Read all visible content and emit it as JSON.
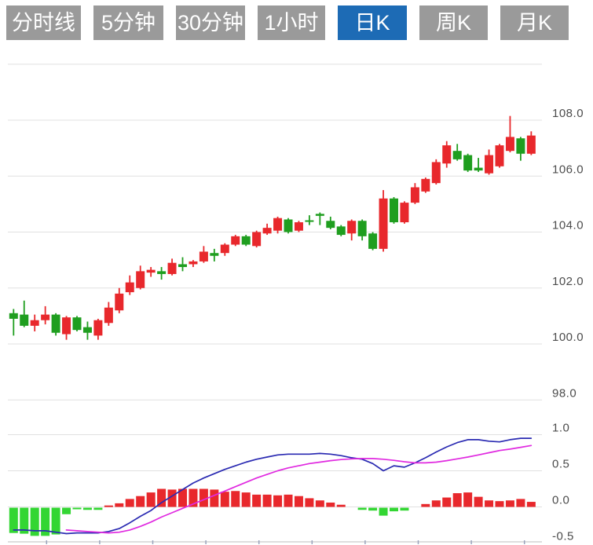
{
  "toolbar": {
    "buttons": [
      {
        "label": "分时线",
        "active": false
      },
      {
        "label": "5分钟",
        "active": false
      },
      {
        "label": "30分钟",
        "active": false
      },
      {
        "label": "1小时",
        "active": false
      },
      {
        "label": "日K",
        "active": true
      },
      {
        "label": "周K",
        "active": false
      },
      {
        "label": "月K",
        "active": false
      }
    ],
    "active_bg": "#1d6bb5",
    "inactive_bg": "#9a9a9a",
    "text_color": "#ffffff"
  },
  "axis_style": {
    "label_color": "#4c4c4c",
    "grid_color": "#e0e0e0",
    "axis_line_color": "#c9c9c9",
    "tick_color": "#9aa3bd"
  },
  "chart_data": [
    {
      "type": "candlestick",
      "panel": "price",
      "title": "",
      "ylim": [
        97.0,
        110.5
      ],
      "yticks": [
        {
          "value": 110.0,
          "label": ""
        },
        {
          "value": 108.0,
          "label": "108.0"
        },
        {
          "value": 106.0,
          "label": "106.0"
        },
        {
          "value": 104.0,
          "label": "104.0"
        },
        {
          "value": 102.0,
          "label": "102.0"
        },
        {
          "value": 100.0,
          "label": "100.0"
        },
        {
          "value": 98.0,
          "label": "98.0"
        }
      ],
      "up_color": "#e8282c",
      "down_color": "#1f9e1f",
      "ohlc_order": [
        "open",
        "high",
        "low",
        "close"
      ],
      "candles": [
        [
          101.1,
          101.25,
          100.3,
          100.9
        ],
        [
          101.05,
          101.55,
          100.6,
          100.65
        ],
        [
          100.65,
          101.05,
          100.45,
          100.85
        ],
        [
          100.85,
          101.35,
          100.7,
          101.05
        ],
        [
          101.05,
          101.1,
          100.3,
          100.4
        ],
        [
          100.35,
          101.0,
          100.15,
          100.95
        ],
        [
          100.95,
          101.0,
          100.45,
          100.5
        ],
        [
          100.6,
          100.8,
          100.15,
          100.4
        ],
        [
          100.3,
          100.9,
          100.15,
          100.85
        ],
        [
          100.75,
          101.5,
          100.65,
          101.3
        ],
        [
          101.2,
          102.0,
          101.1,
          101.8
        ],
        [
          101.85,
          102.45,
          101.75,
          102.2
        ],
        [
          102.0,
          102.8,
          101.95,
          102.6
        ],
        [
          102.55,
          102.75,
          102.4,
          102.65
        ],
        [
          102.6,
          102.75,
          102.3,
          102.5
        ],
        [
          102.5,
          103.05,
          102.45,
          102.9
        ],
        [
          102.85,
          103.1,
          102.6,
          102.75
        ],
        [
          102.85,
          103.0,
          102.75,
          102.95
        ],
        [
          102.95,
          103.5,
          102.9,
          103.3
        ],
        [
          103.25,
          103.4,
          102.95,
          103.15
        ],
        [
          103.25,
          103.6,
          103.15,
          103.55
        ],
        [
          103.55,
          103.9,
          103.5,
          103.85
        ],
        [
          103.85,
          103.9,
          103.5,
          103.55
        ],
        [
          103.5,
          104.05,
          103.45,
          104.0
        ],
        [
          103.95,
          104.3,
          103.9,
          104.15
        ],
        [
          104.05,
          104.55,
          103.95,
          104.5
        ],
        [
          104.45,
          104.5,
          103.95,
          104.0
        ],
        [
          104.05,
          104.4,
          104.0,
          104.35
        ],
        [
          104.42,
          104.6,
          104.25,
          104.38
        ],
        [
          104.65,
          104.7,
          104.25,
          104.58
        ],
        [
          104.4,
          104.55,
          104.1,
          104.15
        ],
        [
          104.2,
          104.25,
          103.85,
          103.9
        ],
        [
          103.95,
          104.45,
          103.7,
          104.4
        ],
        [
          104.4,
          104.45,
          103.7,
          103.85
        ],
        [
          103.95,
          104.0,
          103.35,
          103.4
        ],
        [
          103.4,
          105.5,
          103.3,
          105.2
        ],
        [
          105.2,
          105.25,
          104.3,
          104.35
        ],
        [
          104.35,
          105.1,
          104.3,
          105.05
        ],
        [
          105.05,
          105.75,
          105.0,
          105.6
        ],
        [
          105.45,
          105.95,
          105.4,
          105.9
        ],
        [
          105.75,
          106.6,
          105.7,
          106.5
        ],
        [
          106.45,
          107.25,
          106.3,
          107.1
        ],
        [
          106.9,
          107.15,
          106.55,
          106.6
        ],
        [
          106.75,
          106.8,
          106.15,
          106.2
        ],
        [
          106.3,
          106.65,
          106.15,
          106.2
        ],
        [
          106.1,
          106.95,
          106.05,
          106.75
        ],
        [
          106.35,
          107.15,
          106.3,
          107.1
        ],
        [
          106.9,
          108.15,
          106.85,
          107.4
        ],
        [
          107.35,
          107.4,
          106.55,
          106.8
        ],
        [
          106.8,
          107.6,
          106.75,
          107.45
        ]
      ]
    },
    {
      "type": "macd",
      "panel": "indicator",
      "ylim": [
        -0.5,
        1.0
      ],
      "yticks": [
        {
          "value": 1.0,
          "label": "1.0"
        },
        {
          "value": 0.5,
          "label": "0.5"
        },
        {
          "value": 0.0,
          "label": "0.0"
        },
        {
          "value": -0.5,
          "label": "-0.5"
        }
      ],
      "series": [
        {
          "name": "DIF",
          "color": "#2a2ab2",
          "values": [
            -0.32,
            -0.32,
            -0.33,
            -0.33,
            -0.35,
            -0.37,
            -0.36,
            -0.36,
            -0.36,
            -0.34,
            -0.3,
            -0.22,
            -0.13,
            -0.05,
            0.06,
            0.15,
            0.24,
            0.33,
            0.4,
            0.46,
            0.52,
            0.57,
            0.62,
            0.66,
            0.69,
            0.72,
            0.73,
            0.73,
            0.73,
            0.74,
            0.73,
            0.71,
            0.68,
            0.66,
            0.6,
            0.5,
            0.57,
            0.55,
            0.61,
            0.68,
            0.76,
            0.83,
            0.89,
            0.93,
            0.93,
            0.91,
            0.9,
            0.93,
            0.95,
            0.95
          ]
        },
        {
          "name": "DEA",
          "color": "#e02ae0",
          "values": [
            null,
            null,
            null,
            null,
            null,
            -0.32,
            -0.33,
            -0.34,
            -0.35,
            -0.36,
            -0.35,
            -0.32,
            -0.27,
            -0.21,
            -0.14,
            -0.08,
            -0.02,
            0.04,
            0.1,
            0.16,
            0.22,
            0.28,
            0.34,
            0.4,
            0.45,
            0.5,
            0.54,
            0.57,
            0.6,
            0.62,
            0.64,
            0.655,
            0.665,
            0.67,
            0.67,
            0.66,
            0.645,
            0.625,
            0.61,
            0.61,
            0.62,
            0.64,
            0.665,
            0.69,
            0.72,
            0.75,
            0.78,
            0.8,
            0.825,
            0.85
          ]
        }
      ],
      "histogram": {
        "pos_color": "#e8282c",
        "neg_color": "#33d633",
        "values": [
          -0.35,
          -0.36,
          -0.39,
          -0.39,
          -0.37,
          -0.09,
          -0.01,
          -0.03,
          -0.03,
          0.02,
          0.05,
          0.11,
          0.15,
          0.2,
          0.25,
          0.24,
          0.25,
          0.25,
          0.25,
          0.24,
          0.21,
          0.22,
          0.2,
          0.17,
          0.17,
          0.16,
          0.17,
          0.15,
          0.12,
          0.09,
          0.06,
          0.03,
          0.0,
          -0.03,
          -0.04,
          -0.11,
          -0.05,
          -0.04,
          0.0,
          0.04,
          0.09,
          0.13,
          0.19,
          0.2,
          0.14,
          0.09,
          0.08,
          0.09,
          0.11,
          0.07
        ]
      }
    }
  ]
}
